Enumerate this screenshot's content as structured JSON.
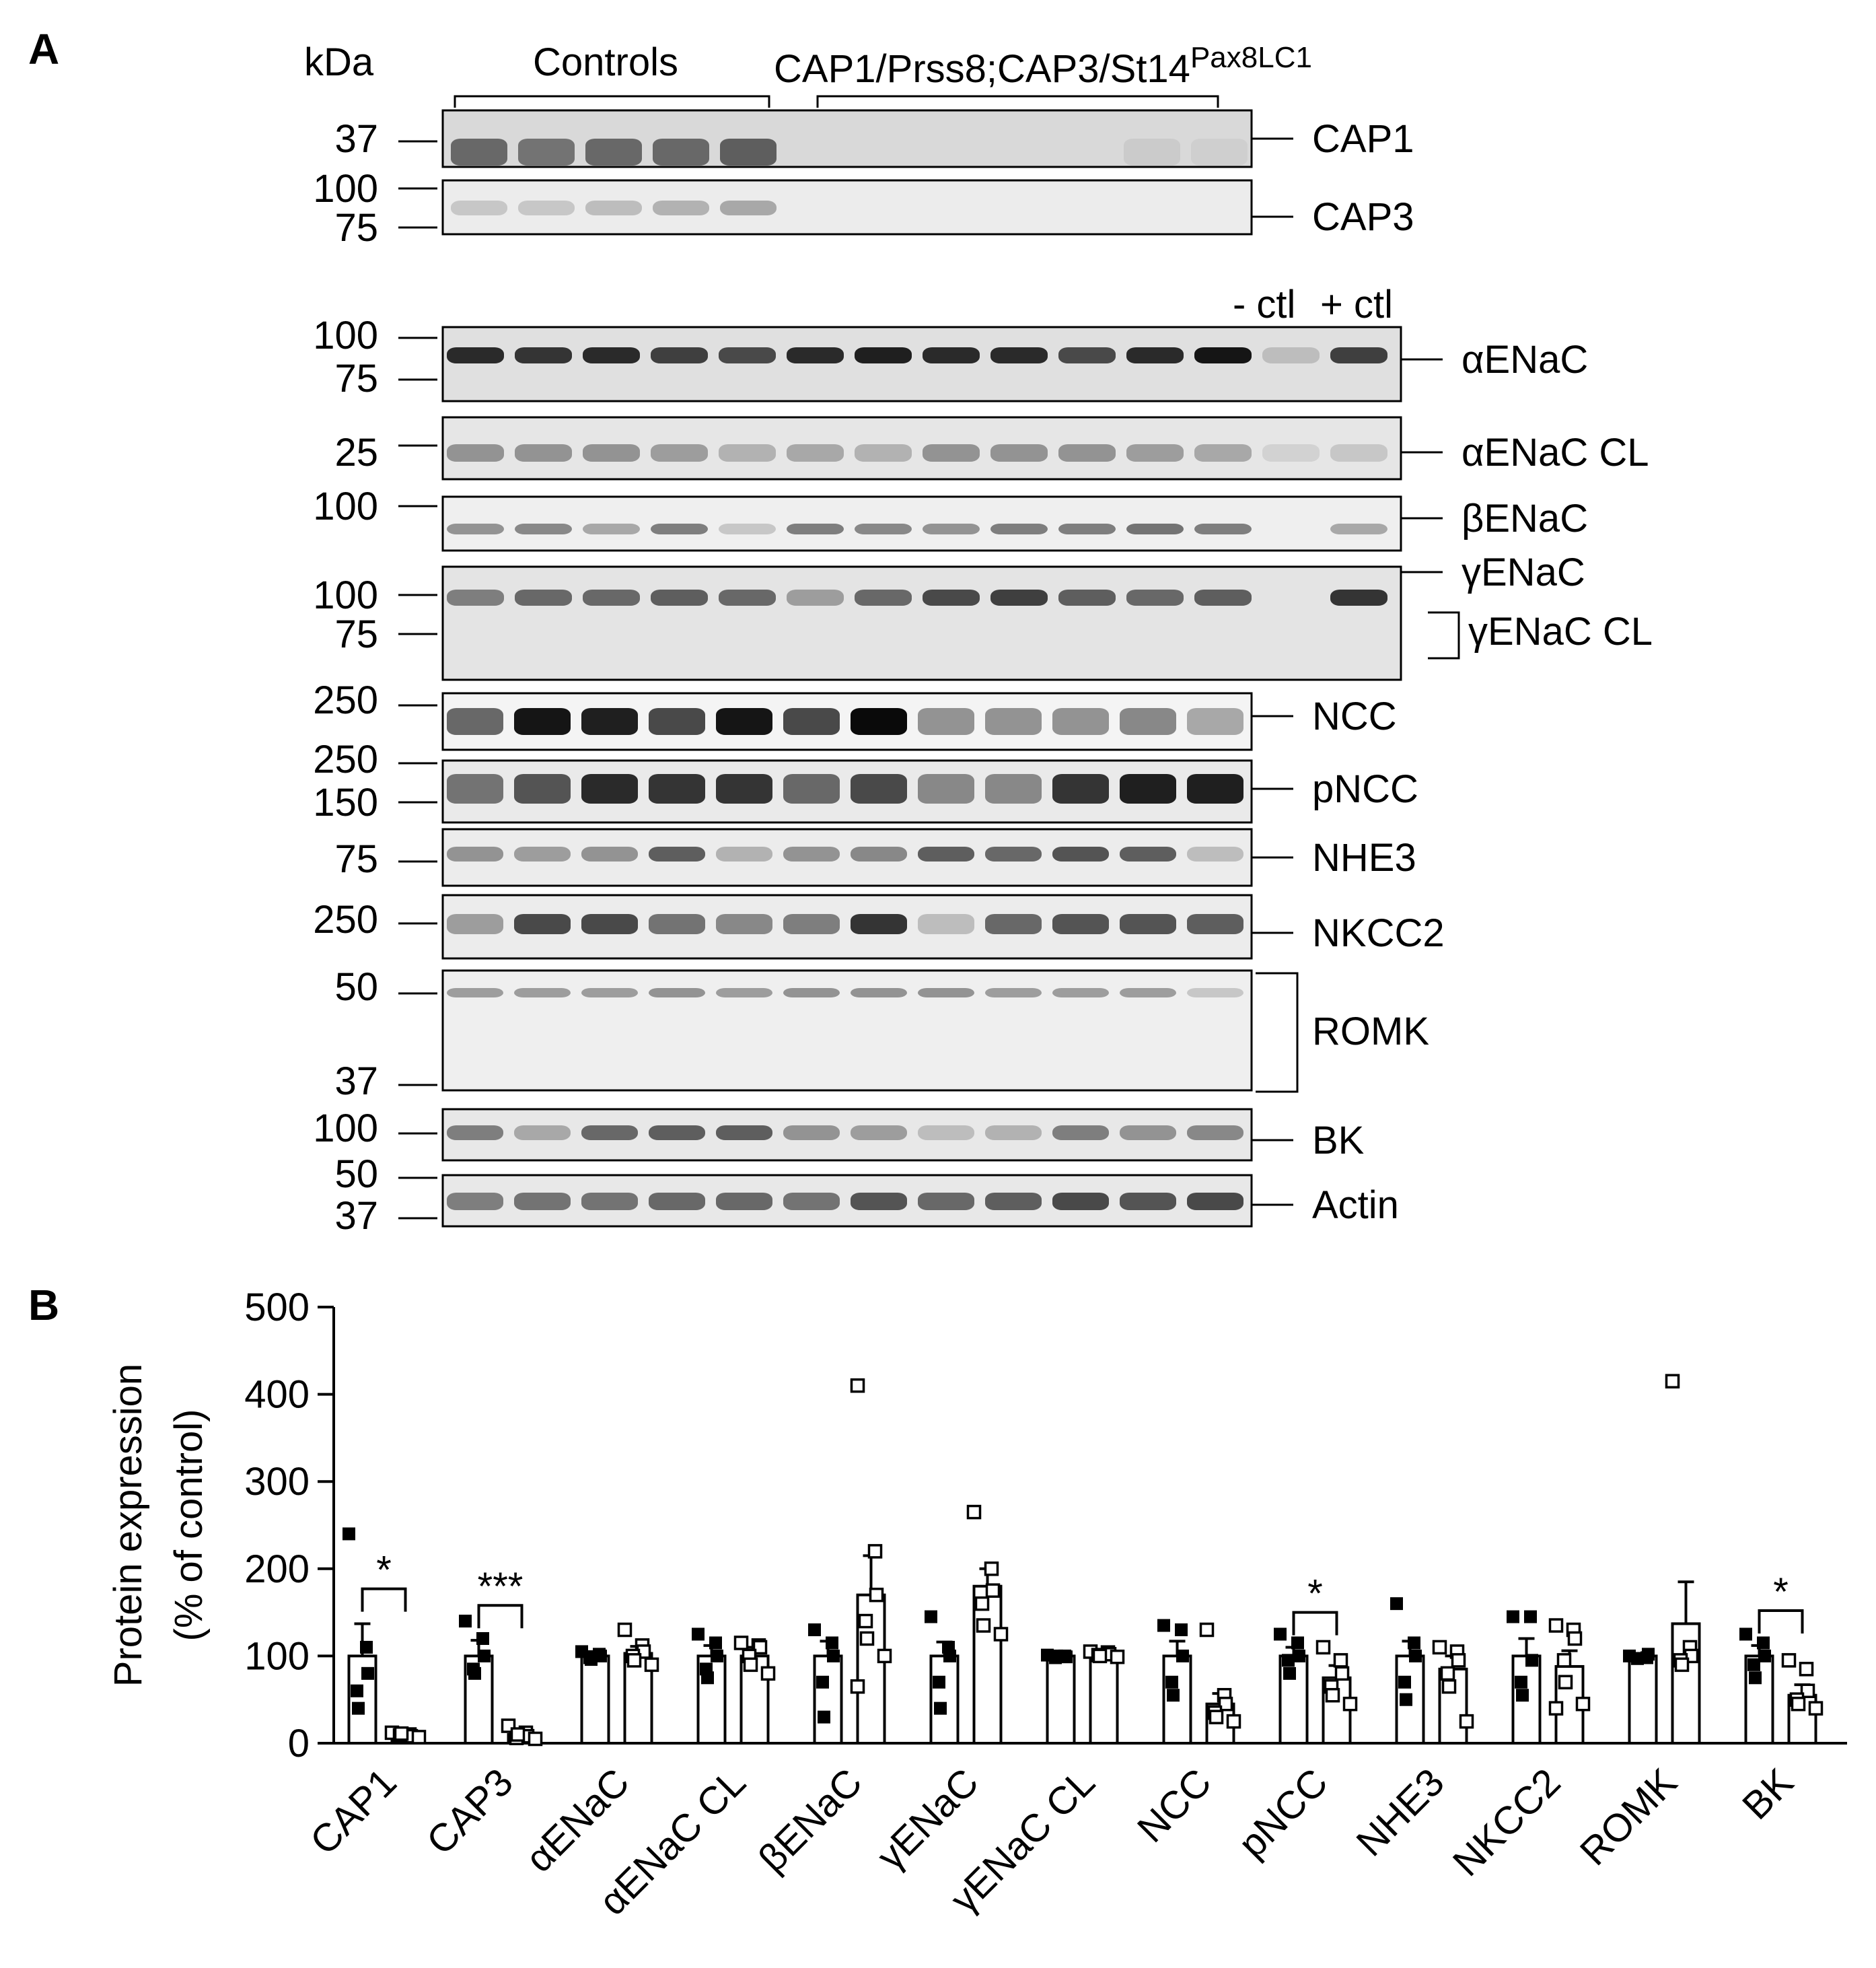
{
  "panel_a": {
    "letter": "A",
    "kda_label": "kDa",
    "group_controls": "Controls",
    "group_mutant": "CAP1/Prss8;CAP3/St14",
    "group_mutant_sup": "Pax8LC1",
    "neg_ctl": "- ctl",
    "pos_ctl": "+ ctl",
    "blots": [
      {
        "label": "CAP1",
        "markers": [
          "37"
        ]
      },
      {
        "label": "CAP3",
        "markers": [
          "100",
          "75"
        ]
      },
      {
        "label": "αENaC",
        "markers": [
          "100",
          "75"
        ]
      },
      {
        "label": "αENaC CL",
        "markers": [
          "25"
        ]
      },
      {
        "label": "βENaC",
        "markers": [
          "100"
        ]
      },
      {
        "label": "γENaC",
        "markers": [
          "100",
          "75"
        ]
      },
      {
        "label": "γENaC CL",
        "markers": []
      },
      {
        "label": "NCC",
        "markers": [
          "250"
        ]
      },
      {
        "label": "pNCC",
        "markers": [
          "250",
          "150"
        ]
      },
      {
        "label": "NHE3",
        "markers": [
          "75"
        ]
      },
      {
        "label": "NKCC2",
        "markers": [
          "250"
        ]
      },
      {
        "label": "ROMK",
        "markers": [
          "50",
          "37"
        ]
      },
      {
        "label": "BK",
        "markers": [
          "100"
        ]
      },
      {
        "label": "Actin",
        "markers": [
          "50",
          "37"
        ]
      }
    ]
  },
  "panel_b": {
    "letter": "B"
  },
  "chart_data": {
    "type": "bar",
    "ylabel_line1": "Protein expression",
    "ylabel_line2": "(% of control)",
    "ylim": [
      0,
      500
    ],
    "yticks": [
      "0",
      "100",
      "200",
      "300",
      "400",
      "500"
    ],
    "categories": [
      "CAP1",
      "CAP3",
      "αENaC",
      "αENaC CL",
      "βENaC",
      "γENaC",
      "γENaC CL",
      "NCC",
      "pNCC",
      "NHE3",
      "NKCC2",
      "ROMK",
      "BK"
    ],
    "series": [
      {
        "marker": "filled-square",
        "means": [
          100,
          100,
          100,
          100,
          100,
          100,
          100,
          100,
          100,
          100,
          100,
          100,
          100
        ],
        "errors": [
          37,
          18,
          5,
          12,
          17,
          16,
          3,
          17,
          10,
          17,
          20,
          3,
          12
        ],
        "points": [
          [
            240,
            110,
            80,
            60,
            40
          ],
          [
            140,
            120,
            100,
            85,
            80
          ],
          [
            105,
            102,
            100,
            98,
            96
          ],
          [
            125,
            115,
            100,
            85,
            75
          ],
          [
            130,
            115,
            100,
            70,
            30
          ],
          [
            145,
            110,
            100,
            70,
            40
          ],
          [
            101,
            100,
            99,
            98,
            100
          ],
          [
            135,
            130,
            100,
            70,
            55
          ],
          [
            125,
            115,
            100,
            95,
            80
          ],
          [
            160,
            115,
            100,
            70,
            50
          ],
          [
            145,
            145,
            95,
            70,
            55
          ],
          [
            100,
            98,
            102,
            97
          ],
          [
            125,
            115,
            100,
            90,
            75
          ]
        ]
      },
      {
        "marker": "open-square",
        "means": [
          10,
          10,
          103,
          100,
          170,
          180,
          103,
          45,
          75,
          85,
          88,
          137,
          55
        ],
        "errors": [
          3,
          4,
          8,
          10,
          45,
          20,
          4,
          12,
          14,
          15,
          18,
          48,
          12
        ],
        "points": [
          [
            12,
            10,
            8,
            9,
            11,
            7
          ],
          [
            20,
            12,
            8,
            6,
            10,
            5
          ],
          [
            130,
            112,
            105,
            100,
            95,
            90
          ],
          [
            115,
            112,
            110,
            100,
            90,
            80
          ],
          [
            410,
            220,
            170,
            140,
            120,
            100,
            65
          ],
          [
            265,
            200,
            175,
            160,
            135,
            125
          ],
          [
            105,
            104,
            102,
            101,
            100,
            99
          ],
          [
            130,
            55,
            45,
            35,
            30,
            25
          ],
          [
            110,
            95,
            80,
            65,
            55,
            45
          ],
          [
            110,
            105,
            95,
            80,
            65,
            25
          ],
          [
            135,
            130,
            120,
            95,
            70,
            45,
            40
          ],
          [
            415,
            110,
            100,
            95,
            90
          ],
          [
            95,
            85,
            60,
            50,
            45,
            40
          ]
        ]
      }
    ],
    "significance": [
      {
        "category_index": 0,
        "label": "*"
      },
      {
        "category_index": 1,
        "label": "***"
      },
      {
        "category_index": 8,
        "label": "*"
      },
      {
        "category_index": 12,
        "label": "*"
      }
    ]
  }
}
